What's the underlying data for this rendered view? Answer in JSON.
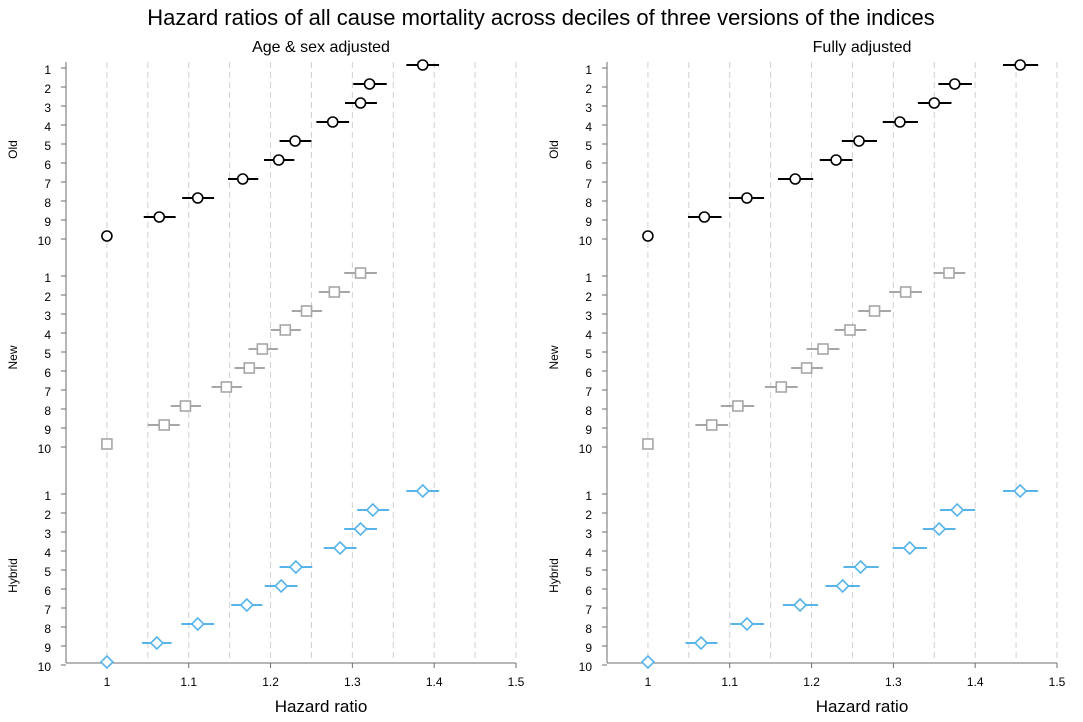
{
  "title": "Hazard ratios of all cause mortality across deciles of three versions of the indices",
  "colors": {
    "old": "#000000",
    "new": "#a6a6a6",
    "hybrid": "#56b4e9",
    "grid": "#d0d0d0",
    "axis": "#6e6e6e"
  },
  "chart_data": [
    {
      "type": "forest",
      "title": "Age & sex adjusted",
      "xlabel": "Hazard ratio",
      "xlim": [
        0.95,
        1.5
      ],
      "xticks": [
        1,
        1.1,
        1.2,
        1.3,
        1.4,
        1.5
      ],
      "grid_x": [
        1,
        1.05,
        1.1,
        1.15,
        1.2,
        1.25,
        1.3,
        1.35,
        1.4,
        1.45,
        1.5
      ],
      "grid": true,
      "categories": [
        "1",
        "2",
        "3",
        "4",
        "5",
        "6",
        "7",
        "8",
        "9",
        "10"
      ],
      "series": [
        {
          "name": "Old",
          "marker": "circle",
          "values": [
            1.386,
            1.321,
            1.31,
            1.276,
            1.23,
            1.21,
            1.166,
            1.111,
            1.064,
            1.0
          ],
          "ci_low": [
            1.366,
            1.301,
            1.291,
            1.256,
            1.211,
            1.192,
            1.148,
            1.092,
            1.045,
            null
          ],
          "ci_high": [
            1.406,
            1.342,
            1.33,
            1.296,
            1.25,
            1.229,
            1.185,
            1.131,
            1.084,
            null
          ]
        },
        {
          "name": "New",
          "marker": "square",
          "values": [
            1.31,
            1.278,
            1.244,
            1.218,
            1.19,
            1.174,
            1.146,
            1.096,
            1.07,
            1.0
          ],
          "ci_low": [
            1.29,
            1.259,
            1.226,
            1.2,
            1.173,
            1.156,
            1.128,
            1.078,
            1.05,
            null
          ],
          "ci_high": [
            1.33,
            1.297,
            1.263,
            1.237,
            1.209,
            1.193,
            1.165,
            1.115,
            1.089,
            null
          ]
        },
        {
          "name": "Hybrid",
          "marker": "diamond",
          "values": [
            1.386,
            1.325,
            1.31,
            1.285,
            1.231,
            1.213,
            1.171,
            1.111,
            1.061,
            1.0
          ],
          "ci_low": [
            1.366,
            1.306,
            1.29,
            1.265,
            1.211,
            1.193,
            1.152,
            1.091,
            1.043,
            null
          ],
          "ci_high": [
            1.406,
            1.345,
            1.33,
            1.305,
            1.251,
            1.233,
            1.19,
            1.131,
            1.079,
            null
          ]
        }
      ]
    },
    {
      "type": "forest",
      "title": "Fully adjusted",
      "xlabel": "Hazard ratio",
      "xlim": [
        0.95,
        1.5
      ],
      "xticks": [
        1,
        1.1,
        1.2,
        1.3,
        1.4,
        1.5
      ],
      "grid_x": [
        1,
        1.05,
        1.1,
        1.15,
        1.2,
        1.25,
        1.3,
        1.35,
        1.4,
        1.45,
        1.5
      ],
      "grid": true,
      "categories": [
        "1",
        "2",
        "3",
        "4",
        "5",
        "6",
        "7",
        "8",
        "9",
        "10"
      ],
      "series": [
        {
          "name": "Old",
          "marker": "circle",
          "values": [
            1.455,
            1.375,
            1.35,
            1.308,
            1.258,
            1.23,
            1.18,
            1.121,
            1.069,
            1.0
          ],
          "ci_low": [
            1.434,
            1.355,
            1.33,
            1.287,
            1.237,
            1.21,
            1.159,
            1.099,
            1.049,
            null
          ],
          "ci_high": [
            1.477,
            1.396,
            1.371,
            1.33,
            1.28,
            1.25,
            1.202,
            1.142,
            1.09,
            null
          ]
        },
        {
          "name": "New",
          "marker": "square",
          "values": [
            1.368,
            1.315,
            1.277,
            1.247,
            1.214,
            1.194,
            1.163,
            1.11,
            1.078,
            1.0
          ],
          "ci_low": [
            1.349,
            1.295,
            1.257,
            1.228,
            1.194,
            1.175,
            1.143,
            1.089,
            1.058,
            null
          ],
          "ci_high": [
            1.388,
            1.335,
            1.297,
            1.267,
            1.234,
            1.214,
            1.183,
            1.13,
            1.098,
            null
          ]
        },
        {
          "name": "Hybrid",
          "marker": "diamond",
          "values": [
            1.455,
            1.378,
            1.356,
            1.32,
            1.26,
            1.238,
            1.186,
            1.121,
            1.065,
            1.0
          ],
          "ci_low": [
            1.434,
            1.357,
            1.336,
            1.299,
            1.239,
            1.217,
            1.165,
            1.101,
            1.046,
            null
          ],
          "ci_high": [
            1.477,
            1.4,
            1.376,
            1.341,
            1.282,
            1.259,
            1.208,
            1.142,
            1.085,
            null
          ]
        }
      ]
    }
  ]
}
